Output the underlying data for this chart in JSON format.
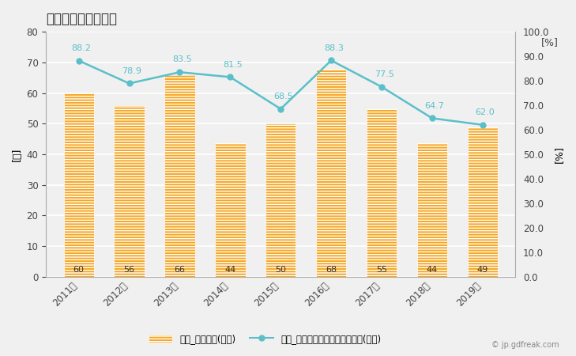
{
  "title": "木造建築物数の推移",
  "years": [
    "2011年",
    "2012年",
    "2013年",
    "2014年",
    "2015年",
    "2016年",
    "2017年",
    "2018年",
    "2019年"
  ],
  "bar_values": [
    60,
    56,
    66,
    44,
    50,
    68,
    55,
    44,
    49
  ],
  "line_values": [
    88.2,
    78.9,
    83.5,
    81.5,
    68.5,
    88.3,
    77.5,
    64.7,
    62.0
  ],
  "bar_color": "#f5a623",
  "line_color": "#5bbfca",
  "bar_label": "木造_建築物数(左軸)",
  "line_label": "木造_全建築物数にしめるシェア(右軸)",
  "ylabel_left": "[棟]",
  "ylabel_right": "[%]",
  "ylabel_right2": "[%]",
  "ylim_left": [
    0,
    80
  ],
  "ylim_right": [
    0.0,
    100.0
  ],
  "yticks_left": [
    0,
    10,
    20,
    30,
    40,
    50,
    60,
    70,
    80
  ],
  "yticks_right": [
    0.0,
    10.0,
    20.0,
    30.0,
    40.0,
    50.0,
    60.0,
    70.0,
    80.0,
    90.0,
    100.0
  ],
  "background_color": "#f0f0f0",
  "plot_bg_color": "#f0f0f0",
  "grid_color": "#ffffff",
  "title_fontsize": 12,
  "axis_fontsize": 9,
  "tick_fontsize": 8.5,
  "annotation_fontsize": 8,
  "watermark": "© jp.gdfreak.com"
}
